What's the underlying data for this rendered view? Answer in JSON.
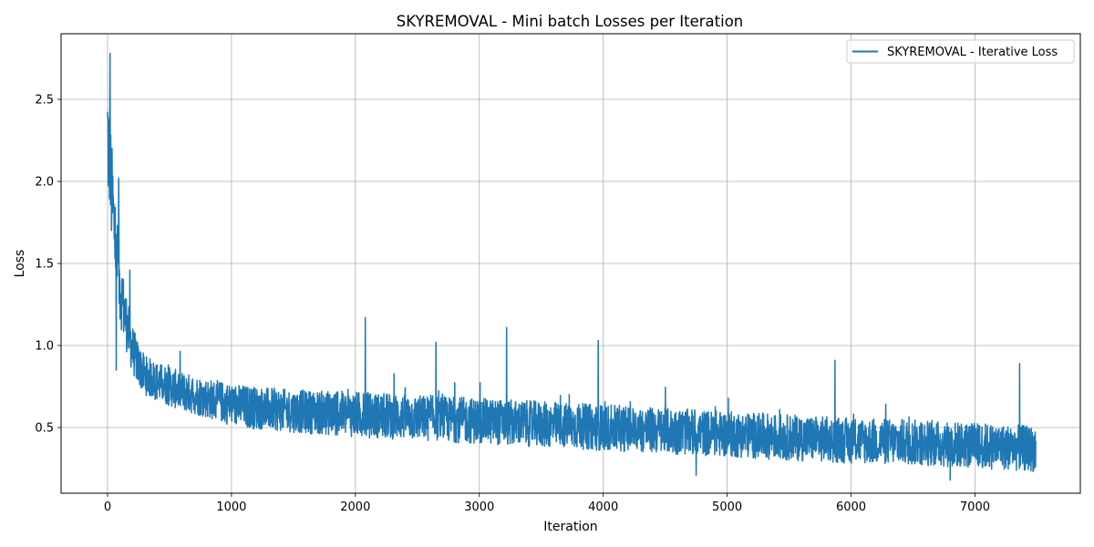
{
  "chart_data": {
    "type": "line",
    "title": "SKYREMOVAL - Mini batch Losses per Iteration",
    "xlabel": "Iteration",
    "ylabel": "Loss",
    "xlim": [
      -375,
      7850
    ],
    "ylim": [
      0.1,
      2.9
    ],
    "xticks": [
      0,
      1000,
      2000,
      3000,
      4000,
      5000,
      6000,
      7000
    ],
    "xtick_labels": [
      "0",
      "1000",
      "2000",
      "3000",
      "4000",
      "5000",
      "6000",
      "7000"
    ],
    "yticks": [
      0.5,
      1.0,
      1.5,
      2.0,
      2.5
    ],
    "ytick_labels": [
      "0.5",
      "1.0",
      "1.5",
      "2.0",
      "2.5"
    ],
    "grid": true,
    "legend_position": "top-right",
    "colors": {
      "series": "#1f77b4",
      "grid": "#b0b0b0",
      "axis": "#000000"
    },
    "series": [
      {
        "name": "SKYREMOVAL - Iterative Loss",
        "x": [
          0,
          25,
          50,
          75,
          100,
          150,
          200,
          250,
          300,
          400,
          500,
          600,
          700,
          800,
          1000,
          1200,
          1500,
          2000,
          2500,
          3000,
          3500,
          4000,
          4500,
          5000,
          5500,
          6000,
          6500,
          7000,
          7490
        ],
        "y": [
          2.3,
          2.0,
          1.75,
          1.55,
          1.35,
          1.15,
          0.98,
          0.88,
          0.82,
          0.78,
          0.75,
          0.72,
          0.7,
          0.68,
          0.64,
          0.62,
          0.6,
          0.58,
          0.56,
          0.54,
          0.52,
          0.5,
          0.48,
          0.46,
          0.44,
          0.42,
          0.41,
          0.39,
          0.37
        ],
        "noise_amplitude": [
          0.4,
          0.35,
          0.3,
          0.25,
          0.22,
          0.18,
          0.15,
          0.13,
          0.12,
          0.12,
          0.12,
          0.12,
          0.12,
          0.12,
          0.13,
          0.13,
          0.13,
          0.14,
          0.14,
          0.14,
          0.14,
          0.14,
          0.14,
          0.14,
          0.14,
          0.14,
          0.14,
          0.14,
          0.14
        ],
        "peaks": [
          {
            "x": 20,
            "y": 2.78
          },
          {
            "x": 90,
            "y": 2.02
          },
          {
            "x": 180,
            "y": 1.46
          },
          {
            "x": 2080,
            "y": 1.17
          },
          {
            "x": 2650,
            "y": 1.02
          },
          {
            "x": 3220,
            "y": 1.11
          },
          {
            "x": 3960,
            "y": 1.03
          },
          {
            "x": 5870,
            "y": 0.91
          },
          {
            "x": 7360,
            "y": 0.89
          }
        ],
        "troughs": [
          {
            "x": 70,
            "y": 0.85
          },
          {
            "x": 4750,
            "y": 0.21
          },
          {
            "x": 6800,
            "y": 0.18
          }
        ]
      }
    ]
  }
}
